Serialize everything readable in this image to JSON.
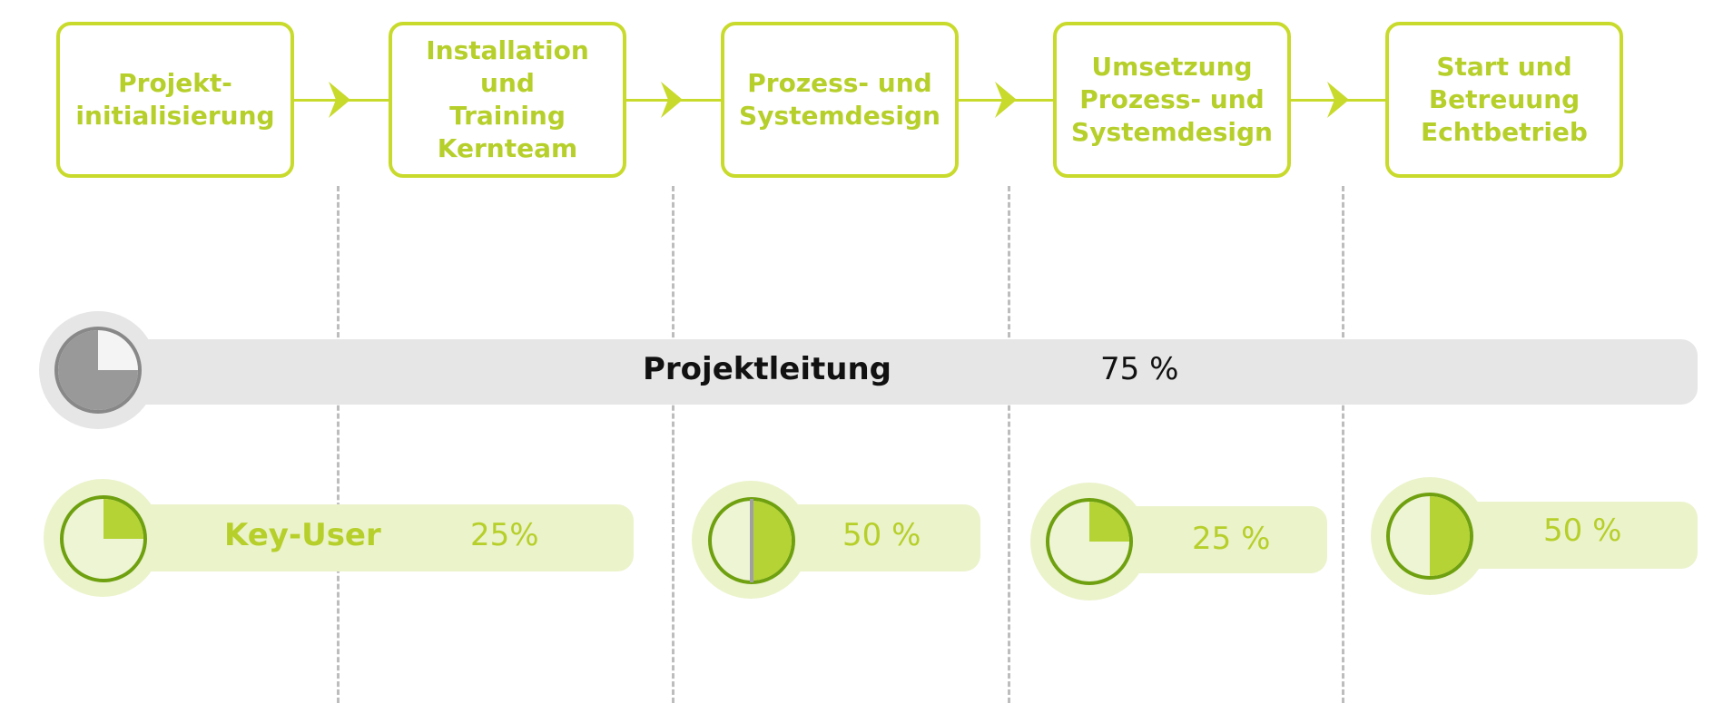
{
  "colors": {
    "accent": "#c8da2b",
    "accent_text": "#b7cf2a",
    "pie_green": "#b5d334",
    "pie_ring": "#6fa00f",
    "light_green": "#ebf3cb",
    "gray_bar": "#e6e6e6",
    "gray_pie": "#999999"
  },
  "phases": [
    {
      "label": "Projekt-\ninitialisierung"
    },
    {
      "label": "Installation\nund\nTraining\nKernteam"
    },
    {
      "label": "Prozess- und\nSystemdesign"
    },
    {
      "label": "Umsetzung\nProzess- und\nSystemdesign"
    },
    {
      "label": "Start und\nBetreuung\nEchtbetrieb"
    }
  ],
  "projektleitung": {
    "label": "Projektleitung",
    "percent_text": "75 %",
    "fraction": 0.75
  },
  "key_user": {
    "label": "Key-User",
    "segments": [
      {
        "percent_text": "25%",
        "fraction": 0.25
      },
      {
        "percent_text": "50 %",
        "fraction": 0.5
      },
      {
        "percent_text": "25 %",
        "fraction": 0.25
      },
      {
        "percent_text": "50 %",
        "fraction": 0.5
      }
    ]
  }
}
